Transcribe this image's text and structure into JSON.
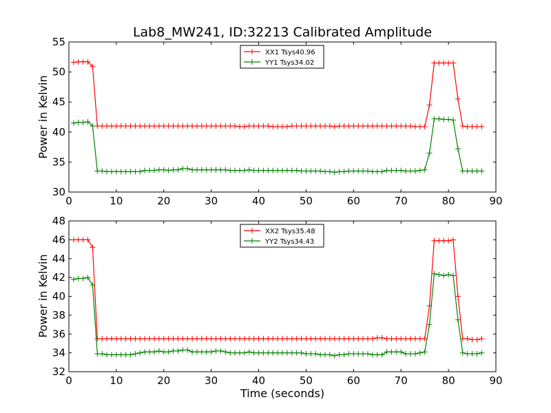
{
  "chart_data": [
    {
      "type": "line",
      "title": "Lab8_MW241, ID:32213 Calibrated Amplitude",
      "xlabel": "",
      "ylabel": "Power in Kelvin",
      "xlim": [
        0,
        90
      ],
      "ylim": [
        30,
        55
      ],
      "xticks": [
        0,
        10,
        20,
        30,
        40,
        50,
        60,
        70,
        80,
        90
      ],
      "yticks": [
        30,
        35,
        40,
        45,
        50,
        55
      ],
      "grid": false,
      "legend_position": "top-center",
      "x": [
        1,
        2,
        3,
        4,
        5,
        6,
        7,
        8,
        9,
        10,
        11,
        12,
        13,
        14,
        15,
        16,
        17,
        18,
        19,
        20,
        21,
        22,
        23,
        24,
        25,
        26,
        27,
        28,
        29,
        30,
        31,
        32,
        33,
        34,
        35,
        36,
        37,
        38,
        39,
        40,
        41,
        42,
        43,
        44,
        45,
        46,
        47,
        48,
        49,
        50,
        51,
        52,
        53,
        54,
        55,
        56,
        57,
        58,
        59,
        60,
        61,
        62,
        63,
        64,
        65,
        66,
        67,
        68,
        69,
        70,
        71,
        72,
        73,
        74,
        75,
        76,
        77,
        78,
        79,
        80,
        81,
        82,
        83,
        84,
        85,
        86,
        87
      ],
      "series": [
        {
          "name": "XX1 Tsys40.96",
          "color": "#ff0000",
          "values": [
            51.6,
            51.7,
            51.7,
            51.7,
            50.9,
            41.0,
            41.0,
            41.0,
            41.0,
            41.0,
            41.0,
            41.0,
            41.0,
            41.0,
            41.0,
            41.0,
            41.0,
            41.0,
            41.0,
            41.0,
            41.0,
            41.0,
            41.0,
            41.0,
            41.0,
            41.0,
            41.0,
            41.0,
            41.0,
            41.0,
            41.0,
            41.0,
            41.0,
            41.0,
            41.0,
            40.9,
            40.9,
            41.0,
            41.0,
            41.0,
            41.0,
            41.0,
            40.9,
            40.9,
            40.9,
            40.9,
            41.0,
            41.0,
            41.0,
            41.0,
            41.0,
            41.0,
            41.0,
            41.0,
            41.0,
            40.9,
            41.0,
            41.0,
            41.0,
            41.0,
            41.0,
            41.0,
            41.0,
            41.0,
            41.0,
            41.0,
            41.0,
            41.0,
            41.0,
            41.0,
            41.0,
            41.0,
            40.9,
            40.9,
            40.9,
            44.5,
            51.5,
            51.5,
            51.5,
            51.5,
            51.5,
            45.5,
            41.0,
            40.9,
            40.9,
            40.9,
            40.9
          ]
        },
        {
          "name": "YY1 Tsys34.02",
          "color": "#008000",
          "values": [
            41.5,
            41.6,
            41.6,
            41.7,
            41.0,
            33.5,
            33.5,
            33.4,
            33.4,
            33.4,
            33.4,
            33.4,
            33.4,
            33.4,
            33.4,
            33.6,
            33.6,
            33.6,
            33.7,
            33.7,
            33.6,
            33.7,
            33.7,
            33.9,
            33.9,
            33.7,
            33.7,
            33.7,
            33.7,
            33.7,
            33.7,
            33.7,
            33.7,
            33.6,
            33.6,
            33.6,
            33.6,
            33.7,
            33.6,
            33.6,
            33.6,
            33.6,
            33.6,
            33.6,
            33.6,
            33.6,
            33.6,
            33.6,
            33.5,
            33.5,
            33.5,
            33.5,
            33.5,
            33.4,
            33.4,
            33.3,
            33.4,
            33.4,
            33.5,
            33.5,
            33.5,
            33.5,
            33.5,
            33.4,
            33.4,
            33.4,
            33.6,
            33.6,
            33.6,
            33.6,
            33.5,
            33.5,
            33.5,
            33.6,
            33.7,
            36.5,
            42.2,
            42.2,
            42.1,
            42.1,
            42.0,
            37.2,
            33.5,
            33.5,
            33.5,
            33.5,
            33.5
          ]
        }
      ]
    },
    {
      "type": "line",
      "title": "",
      "xlabel": "Time (seconds)",
      "ylabel": "Power in Kelvin",
      "xlim": [
        0,
        90
      ],
      "ylim": [
        32,
        48
      ],
      "xticks": [
        0,
        10,
        20,
        30,
        40,
        50,
        60,
        70,
        80,
        90
      ],
      "yticks": [
        32,
        34,
        36,
        38,
        40,
        42,
        44,
        46,
        48
      ],
      "grid": false,
      "legend_position": "top-center",
      "x": [
        1,
        2,
        3,
        4,
        5,
        6,
        7,
        8,
        9,
        10,
        11,
        12,
        13,
        14,
        15,
        16,
        17,
        18,
        19,
        20,
        21,
        22,
        23,
        24,
        25,
        26,
        27,
        28,
        29,
        30,
        31,
        32,
        33,
        34,
        35,
        36,
        37,
        38,
        39,
        40,
        41,
        42,
        43,
        44,
        45,
        46,
        47,
        48,
        49,
        50,
        51,
        52,
        53,
        54,
        55,
        56,
        57,
        58,
        59,
        60,
        61,
        62,
        63,
        64,
        65,
        66,
        67,
        68,
        69,
        70,
        71,
        72,
        73,
        74,
        75,
        76,
        77,
        78,
        79,
        80,
        81,
        82,
        83,
        84,
        85,
        86,
        87
      ],
      "series": [
        {
          "name": "XX2 Tsys35.48",
          "color": "#ff0000",
          "values": [
            46.0,
            46.0,
            46.0,
            46.0,
            45.2,
            35.5,
            35.5,
            35.5,
            35.5,
            35.5,
            35.5,
            35.5,
            35.5,
            35.5,
            35.5,
            35.5,
            35.5,
            35.5,
            35.5,
            35.5,
            35.5,
            35.5,
            35.5,
            35.5,
            35.5,
            35.5,
            35.5,
            35.5,
            35.5,
            35.5,
            35.5,
            35.5,
            35.5,
            35.5,
            35.5,
            35.5,
            35.5,
            35.5,
            35.5,
            35.5,
            35.5,
            35.5,
            35.5,
            35.5,
            35.5,
            35.5,
            35.5,
            35.5,
            35.5,
            35.5,
            35.5,
            35.5,
            35.5,
            35.5,
            35.5,
            35.5,
            35.5,
            35.5,
            35.5,
            35.5,
            35.5,
            35.5,
            35.5,
            35.5,
            35.6,
            35.6,
            35.5,
            35.5,
            35.5,
            35.5,
            35.5,
            35.5,
            35.5,
            35.5,
            35.5,
            39.0,
            45.9,
            45.9,
            45.9,
            45.9,
            46.0,
            40.0,
            35.5,
            35.5,
            35.4,
            35.4,
            35.5
          ]
        },
        {
          "name": "YY2 Tsys34.43",
          "color": "#008000",
          "values": [
            41.8,
            41.9,
            41.9,
            42.0,
            41.2,
            33.9,
            33.9,
            33.8,
            33.8,
            33.8,
            33.8,
            33.8,
            33.8,
            33.9,
            34.0,
            34.1,
            34.1,
            34.1,
            34.2,
            34.1,
            34.1,
            34.2,
            34.2,
            34.3,
            34.3,
            34.1,
            34.1,
            34.1,
            34.1,
            34.1,
            34.2,
            34.2,
            34.1,
            34.0,
            34.0,
            34.0,
            34.0,
            34.1,
            34.0,
            34.0,
            34.0,
            34.0,
            34.0,
            34.0,
            34.0,
            34.0,
            34.0,
            34.0,
            34.0,
            33.9,
            33.9,
            33.9,
            33.8,
            33.8,
            33.8,
            33.7,
            33.8,
            33.8,
            33.9,
            33.9,
            33.9,
            33.9,
            33.9,
            33.8,
            33.8,
            33.8,
            34.1,
            34.1,
            34.1,
            34.1,
            33.9,
            33.9,
            33.9,
            34.0,
            34.1,
            37.0,
            42.4,
            42.3,
            42.2,
            42.3,
            42.2,
            37.5,
            34.0,
            33.9,
            33.9,
            33.9,
            34.0
          ]
        }
      ]
    }
  ]
}
